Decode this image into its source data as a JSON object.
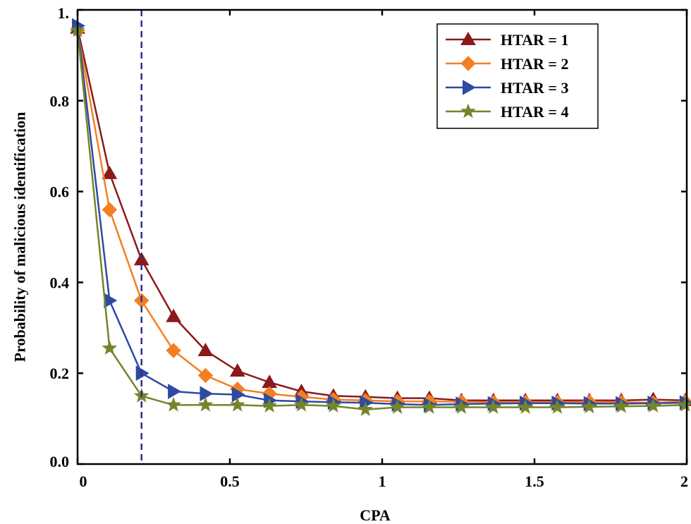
{
  "chart_data": {
    "type": "line",
    "title": "",
    "xlabel": "CPA",
    "ylabel": "Probability of malicious identification",
    "xlim": [
      0,
      2
    ],
    "ylim": [
      0,
      1
    ],
    "x_ticks": [
      {
        "value": 0,
        "label": "0"
      },
      {
        "value": 0.5,
        "label": "0.5"
      },
      {
        "value": 1,
        "label": "1"
      },
      {
        "value": 1.5,
        "label": "1.5"
      },
      {
        "value": 2,
        "label": "2"
      }
    ],
    "y_ticks": [
      {
        "value": 0.0,
        "label": "0.0"
      },
      {
        "value": 0.2,
        "label": "0.2"
      },
      {
        "value": 0.4,
        "label": "0.4"
      },
      {
        "value": 0.6,
        "label": "0.6"
      },
      {
        "value": 0.8,
        "label": "0.8"
      },
      {
        "value": 1.0,
        "label": "1."
      }
    ],
    "vline_x": 0.21,
    "x": [
      0,
      0.105,
      0.21,
      0.315,
      0.42,
      0.525,
      0.63,
      0.735,
      0.84,
      0.945,
      1.05,
      1.155,
      1.26,
      1.365,
      1.47,
      1.575,
      1.68,
      1.785,
      1.89,
      1.995
    ],
    "series": [
      {
        "name": "HTAR = 1",
        "color": "#8b1a1a",
        "marker": "triangle-up",
        "values": [
          0.96,
          0.64,
          0.45,
          0.325,
          0.25,
          0.205,
          0.18,
          0.16,
          0.15,
          0.148,
          0.145,
          0.145,
          0.14,
          0.14,
          0.14,
          0.14,
          0.14,
          0.14,
          0.142,
          0.14
        ]
      },
      {
        "name": "HTAR = 2",
        "color": "#f37f23",
        "marker": "diamond",
        "values": [
          0.955,
          0.56,
          0.36,
          0.25,
          0.195,
          0.165,
          0.155,
          0.148,
          0.142,
          0.14,
          0.138,
          0.138,
          0.137,
          0.136,
          0.136,
          0.136,
          0.137,
          0.136,
          0.135,
          0.137
        ]
      },
      {
        "name": "HTAR = 3",
        "color": "#2e4aa3",
        "marker": "triangle-right",
        "values": [
          0.965,
          0.36,
          0.2,
          0.16,
          0.155,
          0.153,
          0.14,
          0.138,
          0.136,
          0.135,
          0.132,
          0.13,
          0.132,
          0.133,
          0.134,
          0.134,
          0.133,
          0.133,
          0.134,
          0.135
        ]
      },
      {
        "name": "HTAR = 4",
        "color": "#74852a",
        "marker": "star",
        "values": [
          0.955,
          0.255,
          0.15,
          0.13,
          0.13,
          0.13,
          0.128,
          0.13,
          0.128,
          0.12,
          0.125,
          0.125,
          0.125,
          0.125,
          0.125,
          0.125,
          0.126,
          0.127,
          0.128,
          0.13
        ]
      }
    ],
    "legend": {
      "position": "top-right"
    },
    "grid": false
  }
}
